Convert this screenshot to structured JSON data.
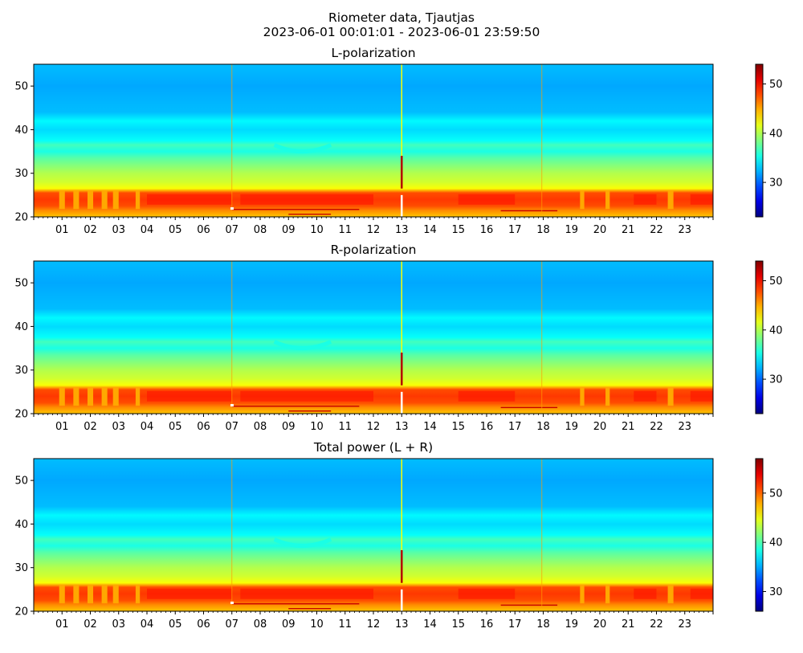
{
  "figure": {
    "title_line1": "Riometer data, Tjautjas",
    "title_line2": "2023-06-01 00:01:01 - 2023-06-01 23:59:50"
  },
  "chart_data": [
    {
      "type": "heatmap",
      "title": "L-polarization",
      "xlabel": "",
      "ylabel": "",
      "x_range_hours": [
        0,
        24
      ],
      "xticks": [
        "01",
        "02",
        "03",
        "04",
        "05",
        "06",
        "07",
        "08",
        "09",
        "10",
        "11",
        "12",
        "13",
        "14",
        "15",
        "16",
        "17",
        "18",
        "19",
        "20",
        "21",
        "22",
        "23"
      ],
      "ylim": [
        20,
        55
      ],
      "yticks": [
        20,
        30,
        40,
        50
      ],
      "colorbar": {
        "colormap": "jet",
        "range": [
          23,
          54
        ],
        "ticks": [
          30,
          40,
          50
        ]
      },
      "features": {
        "band_hot": [
          21.5,
          26
        ],
        "vertical_spikes_hours": [
          7.0,
          13.0,
          17.95
        ],
        "dip_center_hour": 9.5
      }
    },
    {
      "type": "heatmap",
      "title": "R-polarization",
      "xlabel": "",
      "ylabel": "",
      "x_range_hours": [
        0,
        24
      ],
      "xticks": [
        "01",
        "02",
        "03",
        "04",
        "05",
        "06",
        "07",
        "08",
        "09",
        "10",
        "11",
        "12",
        "13",
        "14",
        "15",
        "16",
        "17",
        "18",
        "19",
        "20",
        "21",
        "22",
        "23"
      ],
      "ylim": [
        20,
        55
      ],
      "yticks": [
        20,
        30,
        40,
        50
      ],
      "colorbar": {
        "colormap": "jet",
        "range": [
          23,
          54
        ],
        "ticks": [
          30,
          40,
          50
        ]
      },
      "features": {
        "band_hot": [
          21.5,
          26
        ],
        "vertical_spikes_hours": [
          7.0,
          13.0,
          17.95
        ],
        "dip_center_hour": 9.5
      }
    },
    {
      "type": "heatmap",
      "title": "Total power (L + R)",
      "xlabel": "",
      "ylabel": "",
      "x_range_hours": [
        0,
        24
      ],
      "xticks": [
        "01",
        "02",
        "03",
        "04",
        "05",
        "06",
        "07",
        "08",
        "09",
        "10",
        "11",
        "12",
        "13",
        "14",
        "15",
        "16",
        "17",
        "18",
        "19",
        "20",
        "21",
        "22",
        "23"
      ],
      "ylim": [
        20,
        55
      ],
      "yticks": [
        20,
        30,
        40,
        50
      ],
      "colorbar": {
        "colormap": "jet",
        "range": [
          26,
          57
        ],
        "ticks": [
          30,
          40,
          50
        ]
      },
      "features": {
        "band_hot": [
          21.5,
          26
        ],
        "vertical_spikes_hours": [
          7.0,
          13.0,
          17.95
        ],
        "dip_center_hour": 9.5
      }
    }
  ]
}
